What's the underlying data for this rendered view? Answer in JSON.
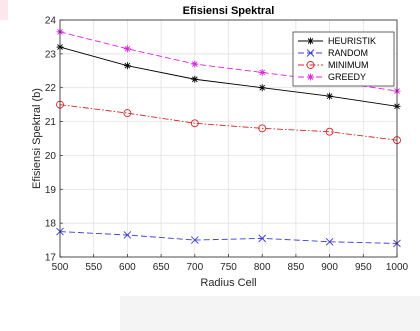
{
  "chart_data": {
    "type": "line",
    "title": "Efisiensi Spektral",
    "xlabel": "Radius Cell",
    "ylabel": "Efisiensi Spektral (b)",
    "x": [
      500,
      600,
      700,
      800,
      900,
      1000
    ],
    "xlim": [
      500,
      1000
    ],
    "ylim": [
      17,
      24
    ],
    "xticks": [
      "500",
      "550",
      "600",
      "650",
      "700",
      "750",
      "800",
      "850",
      "900",
      "950",
      "1000"
    ],
    "yticks": [
      "17",
      "18",
      "19",
      "20",
      "21",
      "22",
      "23",
      "24"
    ],
    "grid": true,
    "legend_position": "top-right",
    "series": [
      {
        "name": "HEURISTIK",
        "values": [
          23.2,
          22.65,
          22.25,
          22.0,
          21.75,
          21.45
        ],
        "color": "#000000",
        "dash": "solid",
        "marker": "asterisk"
      },
      {
        "name": "RANDOM",
        "values": [
          17.75,
          17.65,
          17.5,
          17.55,
          17.45,
          17.4
        ],
        "color": "#3c3cd8",
        "dash": "dashed",
        "marker": "x"
      },
      {
        "name": "MINIMUM",
        "values": [
          21.5,
          21.25,
          20.95,
          20.8,
          20.7,
          20.45
        ],
        "color": "#d62728",
        "dash": "dashdot",
        "marker": "circle"
      },
      {
        "name": "GREEDY",
        "values": [
          23.65,
          23.15,
          22.7,
          22.45,
          22.2,
          21.9
        ],
        "color": "#e020e0",
        "dash": "dashed",
        "marker": "asterisk"
      }
    ]
  }
}
